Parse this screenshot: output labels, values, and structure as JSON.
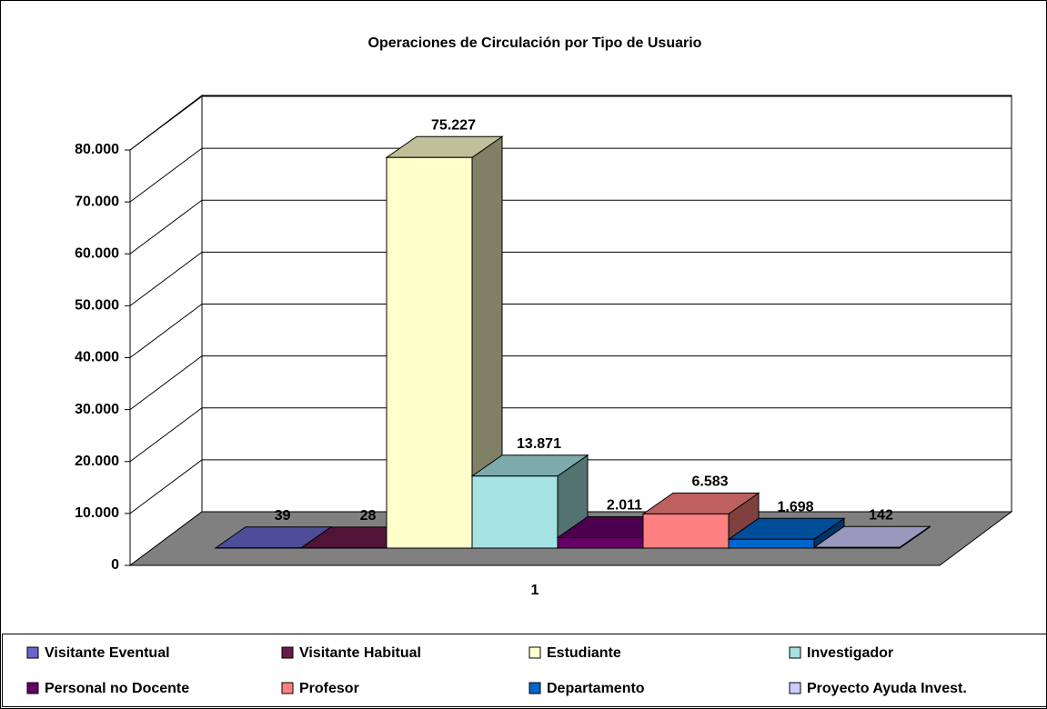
{
  "chart_data": {
    "type": "bar3d",
    "title": "Operaciones de Circulación por Tipo de Usuario",
    "categories": [
      "1"
    ],
    "series": [
      {
        "name": "Visitante Eventual",
        "color": "#6666cc",
        "values": [
          39
        ],
        "value_labels": [
          "39"
        ]
      },
      {
        "name": "Visitante Habitual",
        "color": "#6b1a4a",
        "values": [
          28
        ],
        "value_labels": [
          "28"
        ]
      },
      {
        "name": "Estudiante",
        "color": "#ffffcc",
        "values": [
          75227
        ],
        "value_labels": [
          "75.227"
        ]
      },
      {
        "name": "Investigador",
        "color": "#a6e3e3",
        "values": [
          13871
        ],
        "value_labels": [
          "13.871"
        ]
      },
      {
        "name": "Personal no Docente",
        "color": "#660066",
        "values": [
          2011
        ],
        "value_labels": [
          "2.011"
        ]
      },
      {
        "name": "Profesor",
        "color": "#ff8080",
        "values": [
          6583
        ],
        "value_labels": [
          "6.583"
        ]
      },
      {
        "name": "Departamento",
        "color": "#0066cc",
        "values": [
          1698
        ],
        "value_labels": [
          "1.698"
        ]
      },
      {
        "name": "Proyecto Ayuda Invest.",
        "color": "#ccccff",
        "values": [
          142
        ],
        "value_labels": [
          "142"
        ]
      }
    ],
    "ylim": [
      0,
      80000
    ],
    "yticks": [
      0,
      {
        "value": 10000,
        "label": "10.000"
      },
      {
        "value": 20000,
        "label": "20.000"
      },
      {
        "value": 30000,
        "label": "30.000"
      },
      {
        "value": 40000,
        "label": "40.000"
      },
      {
        "value": 50000,
        "label": "50.000"
      },
      {
        "value": 60000,
        "label": "60.000"
      },
      {
        "value": 70000,
        "label": "70.000"
      },
      {
        "value": 80000,
        "label": "80.000"
      }
    ],
    "grid": true,
    "legend": "bottom"
  }
}
